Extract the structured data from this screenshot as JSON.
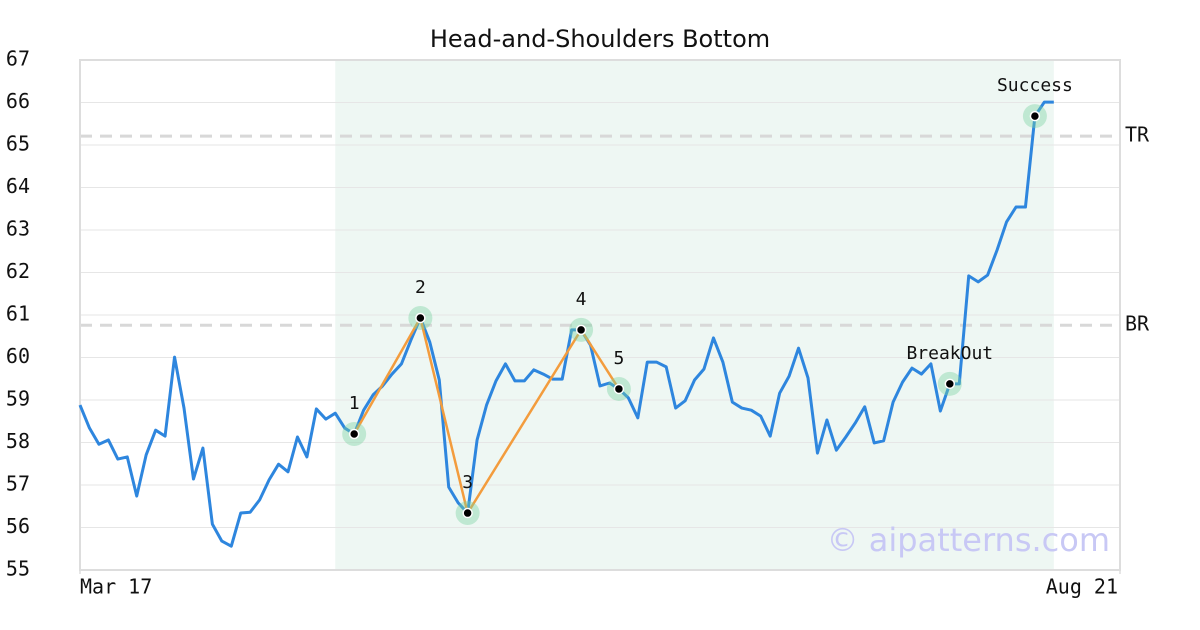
{
  "chart_data": {
    "type": "line",
    "title": "Head-and-Shoulders Bottom",
    "x": [
      0,
      1,
      2,
      3,
      4,
      5,
      6,
      7,
      8,
      9,
      10,
      11,
      12,
      13,
      14,
      15,
      16,
      17,
      18,
      19,
      20,
      21,
      22,
      23,
      24,
      25,
      26,
      27,
      28,
      29,
      30,
      31,
      32,
      33,
      34,
      35,
      36,
      37,
      38,
      39,
      40,
      41,
      42,
      43,
      44,
      45,
      46,
      47,
      48,
      49,
      50,
      51,
      52,
      53,
      54,
      55,
      56,
      57,
      58,
      59,
      60,
      61,
      62,
      63,
      64,
      65,
      66,
      67,
      68,
      69,
      70,
      71,
      72,
      73,
      74,
      75,
      76,
      77,
      78,
      79,
      80,
      81,
      82,
      83,
      84,
      85,
      86,
      87,
      88,
      89,
      90,
      91,
      92,
      93,
      94,
      95,
      96,
      97,
      98,
      99,
      100,
      101,
      102,
      103
    ],
    "series": [
      {
        "color": "#2e86de",
        "values": [
          58.88,
          58.34,
          57.96,
          58.06,
          57.61,
          57.66,
          56.74,
          57.71,
          58.29,
          58.15,
          60.01,
          58.81,
          57.14,
          57.87,
          56.08,
          55.68,
          55.56,
          56.34,
          56.36,
          56.65,
          57.12,
          57.49,
          57.31,
          58.13,
          57.66,
          58.79,
          58.55,
          58.69,
          58.34,
          58.2,
          58.76,
          59.12,
          59.33,
          59.61,
          59.85,
          60.41,
          60.93,
          60.36,
          59.47,
          56.95,
          56.58,
          56.34,
          58.06,
          58.88,
          59.45,
          59.85,
          59.45,
          59.45,
          59.71,
          59.61,
          59.49,
          59.49,
          60.65,
          60.65,
          60.29,
          59.33,
          59.4,
          59.26,
          59.05,
          58.58,
          59.89,
          59.89,
          59.78,
          58.81,
          58.98,
          59.47,
          59.73,
          60.46,
          59.89,
          58.95,
          58.81,
          58.76,
          58.62,
          58.15,
          59.16,
          59.56,
          60.22,
          59.52,
          57.75,
          58.53,
          57.82,
          58.13,
          58.46,
          58.84,
          57.99,
          58.04,
          58.95,
          59.42,
          59.75,
          59.61,
          59.85,
          58.74,
          59.38,
          59.38,
          61.92,
          61.78,
          61.94,
          62.53,
          63.19,
          63.54,
          63.54,
          65.68,
          66.01,
          66.01
        ]
      }
    ],
    "xlim": [
      0,
      110
    ],
    "xticks": [
      {
        "value": 0,
        "label": "Mar 17"
      },
      {
        "value": 110,
        "label": "Aug 21"
      }
    ],
    "ylim": [
      55,
      67
    ],
    "yticks": [
      55,
      56,
      57,
      58,
      59,
      60,
      61,
      62,
      63,
      64,
      65,
      66,
      67
    ],
    "grid": true,
    "shade": {
      "x": [
        27,
        103
      ],
      "color": "#eef7f3"
    },
    "pattern": {
      "color": "#f39c3d",
      "points": [
        {
          "x": 29,
          "y": 58.2,
          "label": "1"
        },
        {
          "x": 36,
          "y": 60.93,
          "label": "2"
        },
        {
          "x": 41,
          "y": 56.34,
          "label": "3"
        },
        {
          "x": 53,
          "y": 60.65,
          "label": "4"
        },
        {
          "x": 57,
          "y": 59.26,
          "label": "5"
        }
      ]
    },
    "markers": [
      {
        "x": 92,
        "y": 59.38,
        "label": "BreakOut"
      },
      {
        "x": 101,
        "y": 65.68,
        "label": "Success"
      }
    ],
    "levels": [
      {
        "name": "TR",
        "value": 65.21
      },
      {
        "name": "BR",
        "value": 60.76
      }
    ],
    "watermark": "© aipatterns.com"
  }
}
